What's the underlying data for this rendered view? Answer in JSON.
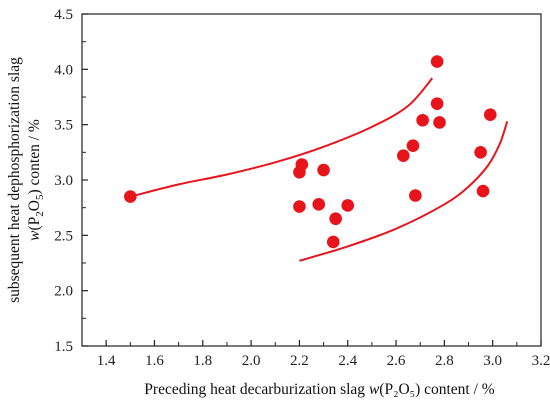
{
  "chart_data": {
    "type": "scatter",
    "title": "",
    "xlabel": {
      "prefix": "Preceding heat decarburization slag ",
      "var": "w",
      "formula": "(P₂O₅)",
      "suffix": " content / %"
    },
    "ylabel": {
      "line1": "subsequent heat dephosphorization slag",
      "var": "w",
      "p": "(P",
      "sub2": "2",
      "o": "O",
      "sub5": "5",
      "rest": ") conten / %"
    },
    "xlim": [
      1.3,
      3.2
    ],
    "ylim": [
      1.5,
      4.5
    ],
    "xticks": [
      "1.4",
      "1.6",
      "1.8",
      "2.0",
      "2.2",
      "2.4",
      "2.6",
      "2.8",
      "3.0",
      "3.2"
    ],
    "yticks": [
      "1.5",
      "2.0",
      "2.5",
      "3.0",
      "3.5",
      "4.0",
      "4.5"
    ],
    "grid": false,
    "color": "#e8141c",
    "points": [
      {
        "x": 1.5,
        "y": 2.85
      },
      {
        "x": 2.2,
        "y": 3.07
      },
      {
        "x": 2.21,
        "y": 3.14
      },
      {
        "x": 2.2,
        "y": 2.76
      },
      {
        "x": 2.28,
        "y": 2.78
      },
      {
        "x": 2.3,
        "y": 3.09
      },
      {
        "x": 2.34,
        "y": 2.44
      },
      {
        "x": 2.35,
        "y": 2.65
      },
      {
        "x": 2.4,
        "y": 2.77
      },
      {
        "x": 2.63,
        "y": 3.22
      },
      {
        "x": 2.67,
        "y": 3.31
      },
      {
        "x": 2.68,
        "y": 2.86
      },
      {
        "x": 2.71,
        "y": 3.54
      },
      {
        "x": 2.77,
        "y": 4.07
      },
      {
        "x": 2.77,
        "y": 3.69
      },
      {
        "x": 2.78,
        "y": 3.52
      },
      {
        "x": 2.95,
        "y": 3.25
      },
      {
        "x": 2.96,
        "y": 2.9
      },
      {
        "x": 2.99,
        "y": 3.59
      }
    ],
    "upper_curve": [
      [
        1.5,
        2.85
      ],
      [
        1.7,
        2.96
      ],
      [
        1.9,
        3.05
      ],
      [
        2.1,
        3.16
      ],
      [
        2.3,
        3.3
      ],
      [
        2.5,
        3.48
      ],
      [
        2.65,
        3.67
      ],
      [
        2.75,
        3.92
      ]
    ],
    "lower_curve": [
      [
        2.2,
        2.27
      ],
      [
        2.4,
        2.4
      ],
      [
        2.6,
        2.56
      ],
      [
        2.8,
        2.78
      ],
      [
        2.9,
        2.94
      ],
      [
        2.98,
        3.13
      ],
      [
        3.03,
        3.33
      ],
      [
        3.06,
        3.53
      ]
    ]
  }
}
